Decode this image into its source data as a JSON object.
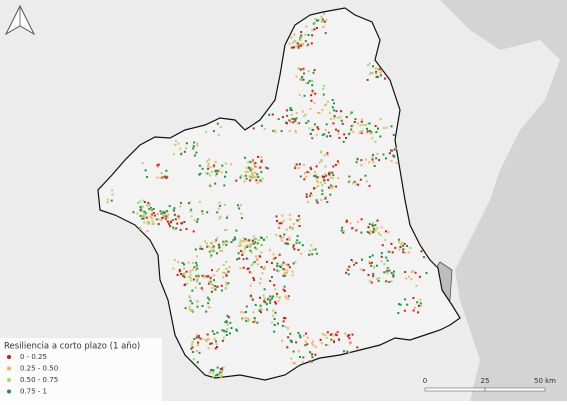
{
  "legend": {
    "title": "Resiliencia a corto plazo (1 año)",
    "items": [
      {
        "label": "0 - 0.25",
        "color": "#d7191c"
      },
      {
        "label": "0.25 - 0.50",
        "color": "#fdae61"
      },
      {
        "label": "0.50 - 0.75",
        "color": "#a6d96a"
      },
      {
        "label": "0.75 - 1",
        "color": "#1a9641"
      }
    ]
  },
  "scale_bar": {
    "labels": [
      "0",
      "25",
      "50 km"
    ]
  }
}
